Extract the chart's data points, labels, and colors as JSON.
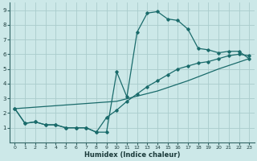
{
  "xlabel": "Humidex (Indice chaleur)",
  "bg_color": "#cce8e8",
  "grid_color": "#aacccc",
  "line_color": "#1a6b6b",
  "xlim": [
    -0.5,
    23.5
  ],
  "ylim": [
    0,
    9.5
  ],
  "xticks": [
    0,
    1,
    2,
    3,
    4,
    5,
    6,
    7,
    8,
    9,
    10,
    11,
    12,
    13,
    14,
    15,
    16,
    17,
    18,
    19,
    20,
    21,
    22,
    23
  ],
  "yticks": [
    1,
    2,
    3,
    4,
    5,
    6,
    7,
    8,
    9
  ],
  "curve1_x": [
    0,
    1,
    2,
    3,
    4,
    5,
    6,
    7,
    8,
    9,
    10,
    11,
    12,
    13,
    14,
    15,
    16,
    17,
    18,
    19,
    20,
    21,
    22,
    23
  ],
  "curve1_y": [
    2.3,
    1.3,
    1.4,
    1.2,
    1.2,
    1.0,
    1.0,
    1.0,
    0.7,
    0.7,
    4.8,
    3.1,
    7.5,
    8.8,
    8.9,
    8.4,
    8.3,
    7.7,
    6.4,
    6.3,
    6.1,
    6.2,
    6.2,
    5.7
  ],
  "curve2_x": [
    0,
    1,
    2,
    3,
    4,
    5,
    6,
    7,
    8,
    9,
    10,
    11,
    12,
    13,
    14,
    15,
    16,
    17,
    18,
    19,
    20,
    21,
    22,
    23
  ],
  "curve2_y": [
    2.3,
    1.3,
    1.4,
    1.2,
    1.2,
    1.0,
    1.0,
    1.0,
    0.7,
    1.7,
    2.2,
    2.8,
    3.3,
    3.8,
    4.2,
    4.6,
    5.0,
    5.2,
    5.4,
    5.5,
    5.7,
    5.9,
    6.0,
    5.9
  ],
  "curve3_x": [
    0,
    10,
    14,
    17,
    20,
    23
  ],
  "curve3_y": [
    2.3,
    2.8,
    3.5,
    4.2,
    5.0,
    5.7
  ]
}
